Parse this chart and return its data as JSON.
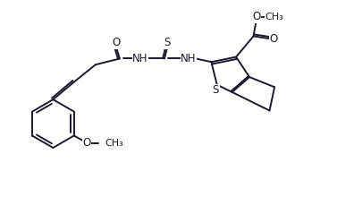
{
  "bg_color": "#ffffff",
  "line_color": "#1a1a2e",
  "line_width": 1.4,
  "font_size": 8.5,
  "figsize": [
    3.77,
    2.2
  ],
  "dpi": 100,
  "xlim": [
    0,
    10
  ],
  "ylim": [
    0,
    5.8
  ]
}
